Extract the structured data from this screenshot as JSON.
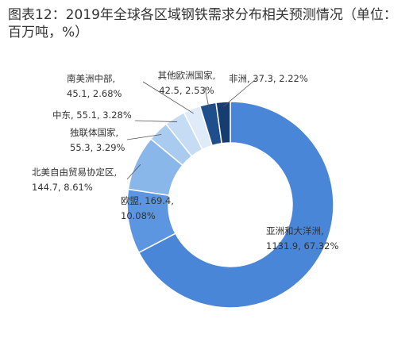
{
  "chart_data": {
    "type": "donut",
    "title": "图表12：2019年全球各区域钢铁需求分布相关预测情况（单位：百万吨，%）",
    "categories": [
      "亚洲和大洋洲",
      "欧盟",
      "北美自由贸易协定区",
      "独联体国家",
      "中东",
      "南美洲中部",
      "其他欧洲国家",
      "非洲"
    ],
    "values": [
      1131.9,
      169.4,
      144.7,
      55.3,
      55.1,
      45.1,
      42.5,
      37.3
    ],
    "value_labels": [
      ", 1131.9, 67.32%",
      ", 169.4, 10.08%",
      ", 144.7, 8.61%",
      ", 55.3, 3.29%",
      ", 55.1, 3.28%",
      ", 45.1, 2.68%",
      ", 42.5, 2.53%",
      ", 37.3, 2.22%"
    ],
    "colors": [
      "#4a86d8",
      "#5d96e0",
      "#8ab7ea",
      "#a9cbf0",
      "#c6dcf4",
      "#dfebf9",
      "#1f4e8c",
      "#173d70"
    ]
  }
}
